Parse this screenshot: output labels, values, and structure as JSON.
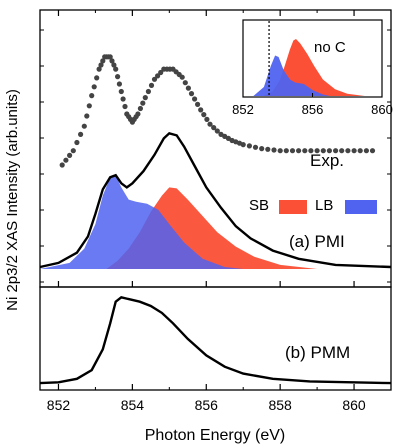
{
  "chart_data": {
    "type": "line",
    "xlabel": "Photon Energy (eV)",
    "ylabel": "Ni 2p3/2 XAS Intensity (arb.units)",
    "xlim": [
      851.5,
      861
    ],
    "xticks": [
      852,
      854,
      856,
      858,
      860
    ],
    "ylim_top": [
      0,
      1.25
    ],
    "ylim_bottom": [
      0,
      1.05
    ],
    "panel_labels": {
      "exp": "Exp.",
      "pmi": "(a) PMI",
      "pmm": "(b) PMM"
    },
    "legend": {
      "sb": "SB",
      "lb": "LB",
      "sb_color": "#fb4f36",
      "lb_color": "#4f63f0"
    },
    "exp_points": [
      [
        852.1,
        0.51
      ],
      [
        852.4,
        0.58
      ],
      [
        852.7,
        0.7
      ],
      [
        852.9,
        0.85
      ],
      [
        853.1,
        0.98
      ],
      [
        853.25,
        1.04
      ],
      [
        853.4,
        1.04
      ],
      [
        853.55,
        0.98
      ],
      [
        853.7,
        0.87
      ],
      [
        853.85,
        0.76
      ],
      [
        854.0,
        0.72
      ],
      [
        854.15,
        0.76
      ],
      [
        854.35,
        0.84
      ],
      [
        854.6,
        0.93
      ],
      [
        854.85,
        0.98
      ],
      [
        855.1,
        0.98
      ],
      [
        855.35,
        0.94
      ],
      [
        855.6,
        0.86
      ],
      [
        855.85,
        0.78
      ],
      [
        856.1,
        0.71
      ],
      [
        856.4,
        0.66
      ],
      [
        856.7,
        0.63
      ],
      [
        857.0,
        0.61
      ],
      [
        857.5,
        0.59
      ],
      [
        858.0,
        0.58
      ],
      [
        858.5,
        0.58
      ],
      [
        859.0,
        0.58
      ],
      [
        859.5,
        0.58
      ],
      [
        860.0,
        0.58
      ],
      [
        860.5,
        0.58
      ]
    ],
    "pmi_total": [
      [
        851.5,
        0.01
      ],
      [
        852.0,
        0.03
      ],
      [
        852.5,
        0.08
      ],
      [
        852.8,
        0.16
      ],
      [
        853.0,
        0.27
      ],
      [
        853.2,
        0.39
      ],
      [
        853.4,
        0.45
      ],
      [
        853.55,
        0.46
      ],
      [
        853.7,
        0.42
      ],
      [
        853.85,
        0.4
      ],
      [
        854.0,
        0.42
      ],
      [
        854.3,
        0.48
      ],
      [
        854.6,
        0.56
      ],
      [
        854.85,
        0.64
      ],
      [
        855.0,
        0.665
      ],
      [
        855.2,
        0.655
      ],
      [
        855.4,
        0.6
      ],
      [
        855.7,
        0.5
      ],
      [
        856.0,
        0.4
      ],
      [
        856.4,
        0.3
      ],
      [
        856.8,
        0.21
      ],
      [
        857.2,
        0.15
      ],
      [
        857.8,
        0.09
      ],
      [
        858.5,
        0.05
      ],
      [
        859.5,
        0.02
      ],
      [
        861.0,
        0.01
      ]
    ],
    "pmi_sb": [
      [
        853.3,
        0.0
      ],
      [
        853.6,
        0.04
      ],
      [
        853.9,
        0.1
      ],
      [
        854.2,
        0.18
      ],
      [
        854.5,
        0.28
      ],
      [
        854.8,
        0.36
      ],
      [
        855.0,
        0.4
      ],
      [
        855.2,
        0.395
      ],
      [
        855.5,
        0.34
      ],
      [
        855.9,
        0.26
      ],
      [
        856.3,
        0.18
      ],
      [
        856.8,
        0.11
      ],
      [
        857.3,
        0.06
      ],
      [
        858.0,
        0.02
      ],
      [
        859.0,
        0.0
      ]
    ],
    "pmi_lb": [
      [
        851.5,
        0.0
      ],
      [
        852.3,
        0.03
      ],
      [
        852.7,
        0.1
      ],
      [
        853.0,
        0.22
      ],
      [
        853.2,
        0.36
      ],
      [
        853.4,
        0.45
      ],
      [
        853.55,
        0.46
      ],
      [
        853.7,
        0.4
      ],
      [
        853.9,
        0.34
      ],
      [
        854.1,
        0.33
      ],
      [
        854.4,
        0.32
      ],
      [
        854.7,
        0.29
      ],
      [
        855.0,
        0.22
      ],
      [
        855.4,
        0.13
      ],
      [
        855.9,
        0.05
      ],
      [
        856.5,
        0.01
      ],
      [
        857.0,
        0.0
      ]
    ],
    "pmm_total": [
      [
        851.5,
        0.01
      ],
      [
        852.0,
        0.02
      ],
      [
        852.5,
        0.06
      ],
      [
        852.9,
        0.16
      ],
      [
        853.2,
        0.4
      ],
      [
        853.4,
        0.7
      ],
      [
        853.55,
        0.95
      ],
      [
        853.7,
        1.0
      ],
      [
        853.9,
        0.98
      ],
      [
        854.2,
        0.95
      ],
      [
        854.5,
        0.9
      ],
      [
        854.8,
        0.82
      ],
      [
        855.1,
        0.7
      ],
      [
        855.5,
        0.52
      ],
      [
        856.0,
        0.33
      ],
      [
        856.5,
        0.2
      ],
      [
        857.0,
        0.12
      ],
      [
        857.8,
        0.06
      ],
      [
        858.8,
        0.03
      ],
      [
        861.0,
        0.01
      ]
    ],
    "inset": {
      "label": "no C",
      "xlim": [
        852,
        860
      ],
      "xticks": [
        852,
        856,
        860
      ],
      "dotted_line_x": 853.5,
      "sb": [
        [
          853.2,
          0.0
        ],
        [
          853.7,
          0.06
        ],
        [
          854.1,
          0.2
        ],
        [
          854.4,
          0.4
        ],
        [
          854.7,
          0.62
        ],
        [
          854.9,
          0.74
        ],
        [
          855.05,
          0.76
        ],
        [
          855.3,
          0.7
        ],
        [
          855.7,
          0.56
        ],
        [
          856.1,
          0.4
        ],
        [
          856.6,
          0.22
        ],
        [
          857.3,
          0.09
        ],
        [
          858.0,
          0.03
        ],
        [
          859.0,
          0.0
        ]
      ],
      "lb": [
        [
          852.6,
          0.0
        ],
        [
          853.2,
          0.12
        ],
        [
          853.6,
          0.4
        ],
        [
          853.85,
          0.54
        ],
        [
          854.05,
          0.52
        ],
        [
          854.35,
          0.34
        ],
        [
          854.7,
          0.22
        ],
        [
          855.0,
          0.18
        ],
        [
          855.5,
          0.16
        ],
        [
          856.0,
          0.08
        ],
        [
          856.6,
          0.02
        ],
        [
          857.0,
          0.0
        ]
      ]
    }
  }
}
